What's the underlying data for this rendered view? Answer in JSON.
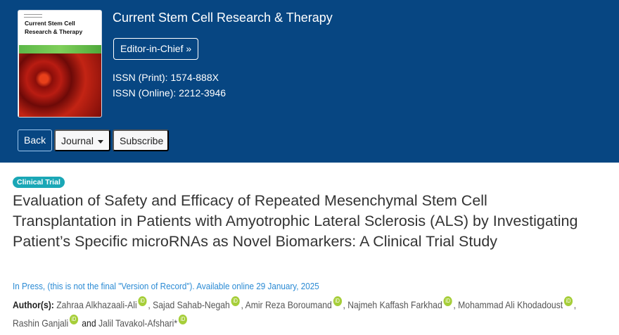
{
  "header": {
    "cover_title": "Current Stem Cell Research & Therapy",
    "journal_title": "Current Stem Cell Research & Therapy",
    "editor_button": "Editor-in-Chief »",
    "issn_print": "ISSN (Print): 1574-888X",
    "issn_online": "ISSN (Online): 2212-3946",
    "buttons": {
      "back": "Back",
      "journal": "Journal",
      "subscribe": "Subscribe"
    }
  },
  "article": {
    "badge": "Clinical Trial",
    "title": "Evaluation of Safety and Efficacy of Repeated Mesenchymal Stem Cell Transplantation in Patients with Amyotrophic Lateral Sclerosis (ALS) by Investigating Patient’s Specific microRNAs as Novel Biomarkers: A Clinical Trial Study",
    "status": "In Press, (this is not the final \"Version of Record\"). Available online 29 January, 2025",
    "authors_label": "Author(s):",
    "authors": [
      "Zahraa Alkhazaali-Ali",
      "Sajad Sahab-Negah",
      "Amir Reza Boroumand",
      "Najmeh Kaffash Farkhad",
      "Mohammad Ali Khodadoust",
      "Rashin Ganjali",
      "Jalil Tavakol-Afshari*"
    ],
    "and": "and",
    "orcid_icon": "iD",
    "colors": {
      "header": "#074682",
      "badge": "#1aa7b6",
      "link": "#2a8ad4",
      "orcid": "#a6ce39"
    }
  }
}
